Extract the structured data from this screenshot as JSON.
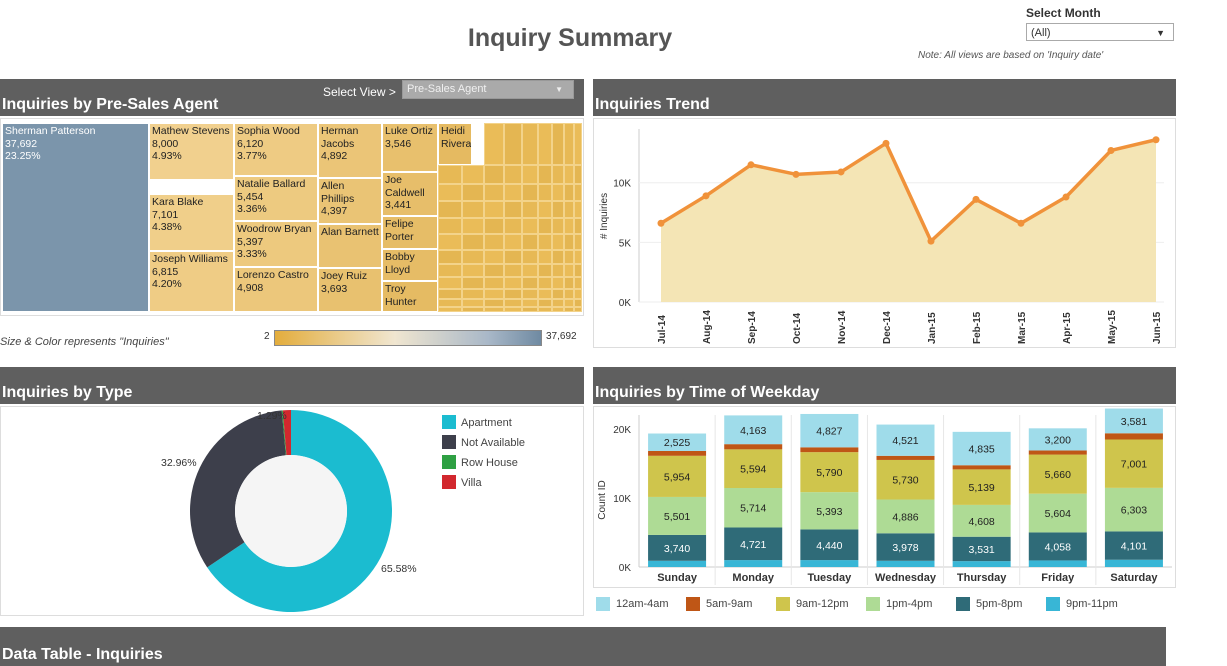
{
  "header": {
    "title": "Inquiry Summary",
    "month_label": "Select Month",
    "month_value": "(All)",
    "note": "Note: All views are based on 'Inquiry date'"
  },
  "agent_panel": {
    "title": "Inquiries by Pre-Sales Agent",
    "view_label": "Select View >",
    "view_value": "Pre-Sales Agent",
    "size_note": "Size & Color represents \"Inquiries\"",
    "scale_min": "2",
    "scale_max": "37,692"
  },
  "trend_panel": {
    "title": "Inquiries Trend"
  },
  "type_panel": {
    "title": "Inquiries by Type"
  },
  "weekday_panel": {
    "title": "Inquiries by Time of Weekday"
  },
  "table_panel": {
    "title": "Data Table - Inquiries"
  },
  "colors": {
    "header_bg": "#5f5f5f",
    "treemap_top": "#7b95ab",
    "treemap_gold": "#e4b54a",
    "trend_line": "#f0923a",
    "trend_fill": "#f4e5b5"
  },
  "chart_data": [
    {
      "type": "treemap",
      "name": "Inquiries by Pre-Sales Agent",
      "items": [
        {
          "label": "Sherman Patterson",
          "value": "37,692",
          "pct": "23.25%"
        },
        {
          "label": "Mathew Stevens",
          "value": "8,000",
          "pct": "4.93%"
        },
        {
          "label": "Kara Blake",
          "value": "7,101",
          "pct": "4.38%"
        },
        {
          "label": "Joseph Williams",
          "value": "6,815",
          "pct": "4.20%"
        },
        {
          "label": "Sophia Wood",
          "value": "6,120",
          "pct": "3.77%"
        },
        {
          "label": "Natalie Ballard",
          "value": "5,454",
          "pct": "3.36%"
        },
        {
          "label": "Woodrow Bryan",
          "value": "5,397",
          "pct": "3.33%"
        },
        {
          "label": "Lorenzo Castro",
          "value": "4,908",
          "pct": ""
        },
        {
          "label": "Herman Jacobs",
          "value": "4,892",
          "pct": ""
        },
        {
          "label": "Allen Phillips",
          "value": "4,397",
          "pct": ""
        },
        {
          "label": "Alan Barnett",
          "value": "",
          "pct": ""
        },
        {
          "label": "Joey Ruiz",
          "value": "3,693",
          "pct": ""
        },
        {
          "label": "Luke Ortiz",
          "value": "3,546",
          "pct": ""
        },
        {
          "label": "Joe Caldwell",
          "value": "3,441",
          "pct": ""
        },
        {
          "label": "Felipe Porter",
          "value": "",
          "pct": ""
        },
        {
          "label": "Bobby Lloyd",
          "value": "",
          "pct": ""
        },
        {
          "label": "Troy Hunter",
          "value": "",
          "pct": ""
        },
        {
          "label": "Heidi Rivera",
          "value": "",
          "pct": ""
        }
      ]
    },
    {
      "type": "area",
      "name": "Inquiries Trend",
      "ylabel": "# Inquiries",
      "categories": [
        "Jul-14",
        "Aug-14",
        "Sep-14",
        "Oct-14",
        "Nov-14",
        "Dec-14",
        "Jan-15",
        "Feb-15",
        "Mar-15",
        "Apr-15",
        "May-15",
        "Jun-15"
      ],
      "values": [
        6600,
        8900,
        11500,
        10700,
        10900,
        13300,
        5100,
        8600,
        6600,
        8800,
        12700,
        13600
      ],
      "yticks": [
        {
          "v": 0,
          "label": "0K"
        },
        {
          "v": 5000,
          "label": "5K"
        },
        {
          "v": 10000,
          "label": "10K"
        }
      ],
      "ylim": [
        0,
        14500
      ]
    },
    {
      "type": "pie",
      "name": "Inquiries by Type",
      "donut": true,
      "slices": [
        {
          "label": "Apartment",
          "pct": 65.58,
          "pct_label": "65.58%",
          "color": "#1bbcd0"
        },
        {
          "label": "Not Available",
          "pct": 32.96,
          "pct_label": "32.96%",
          "color": "#3d3f4b"
        },
        {
          "label": "Row House",
          "pct": 0.17,
          "pct_label": "",
          "color": "#2ea043"
        },
        {
          "label": "Villa",
          "pct": 1.29,
          "pct_label": "1.29%",
          "color": "#d2282e"
        }
      ]
    },
    {
      "type": "bar",
      "stacked": true,
      "name": "Inquiries by Time of Weekday",
      "ylabel": "Count ID",
      "categories": [
        "Sunday",
        "Monday",
        "Tuesday",
        "Wednesday",
        "Thursday",
        "Friday",
        "Saturday"
      ],
      "yticks": [
        {
          "v": 0,
          "label": "0K"
        },
        {
          "v": 10000,
          "label": "10K"
        },
        {
          "v": 20000,
          "label": "20K"
        }
      ],
      "ylim": [
        0,
        22000
      ],
      "series": [
        {
          "name": "9pm-11pm",
          "color": "#38b6d6",
          "values": [
            900,
            1000,
            1000,
            900,
            850,
            950,
            1050
          ],
          "labels": false
        },
        {
          "name": "5pm-8pm",
          "color": "#2f6b78",
          "values": [
            3740,
            4721,
            4440,
            3978,
            3531,
            4058,
            4101
          ],
          "labels": true
        },
        {
          "name": "1pm-4pm",
          "color": "#aedb95",
          "values": [
            5501,
            5714,
            5393,
            4886,
            4608,
            5604,
            6303
          ],
          "labels": true
        },
        {
          "name": "9am-12pm",
          "color": "#cfc54c",
          "values": [
            5954,
            5594,
            5790,
            5730,
            5139,
            5660,
            7001
          ],
          "labels": true
        },
        {
          "name": "5am-9am",
          "color": "#bf5616",
          "values": [
            700,
            750,
            700,
            600,
            600,
            600,
            900
          ],
          "labels": false
        },
        {
          "name": "12am-4am",
          "color": "#9fdcea",
          "values": [
            2525,
            4163,
            4827,
            4521,
            4835,
            3200,
            3581
          ],
          "labels": true
        }
      ],
      "legend_order": [
        "12am-4am",
        "5am-9am",
        "9am-12pm",
        "1pm-4pm",
        "5pm-8pm",
        "9pm-11pm"
      ]
    }
  ]
}
